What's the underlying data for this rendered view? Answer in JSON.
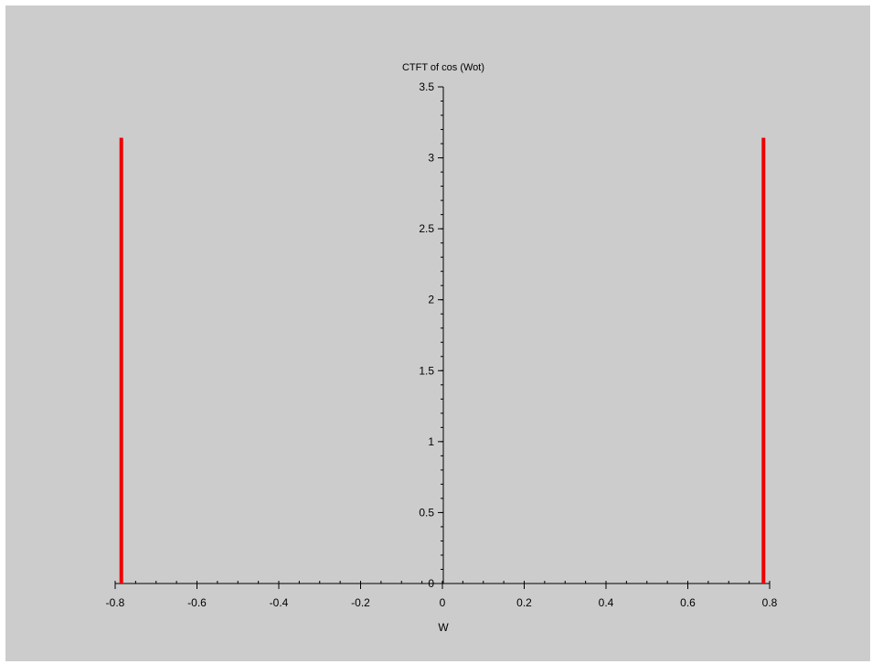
{
  "chart_data": {
    "type": "bar",
    "title": "CTFT of cos (Wot)",
    "xlabel": "W",
    "ylabel": "",
    "xlim": [
      -0.8,
      0.8
    ],
    "ylim": [
      0,
      3.5
    ],
    "x_ticks": [
      "-0.8",
      "-0.6",
      "-0.4",
      "-0.2",
      "0",
      "0.2",
      "0.4",
      "0.6",
      "0.8"
    ],
    "y_ticks": [
      "0",
      "0.5",
      "1",
      "1.5",
      "2",
      "2.5",
      "3",
      "3.5"
    ],
    "x": [
      -0.785,
      0.785
    ],
    "values": [
      3.1416,
      3.1416
    ],
    "grid": false,
    "legend": "none"
  },
  "colors": {
    "background": "#cccccc",
    "series": "#ee0000",
    "axis": "#000000"
  }
}
